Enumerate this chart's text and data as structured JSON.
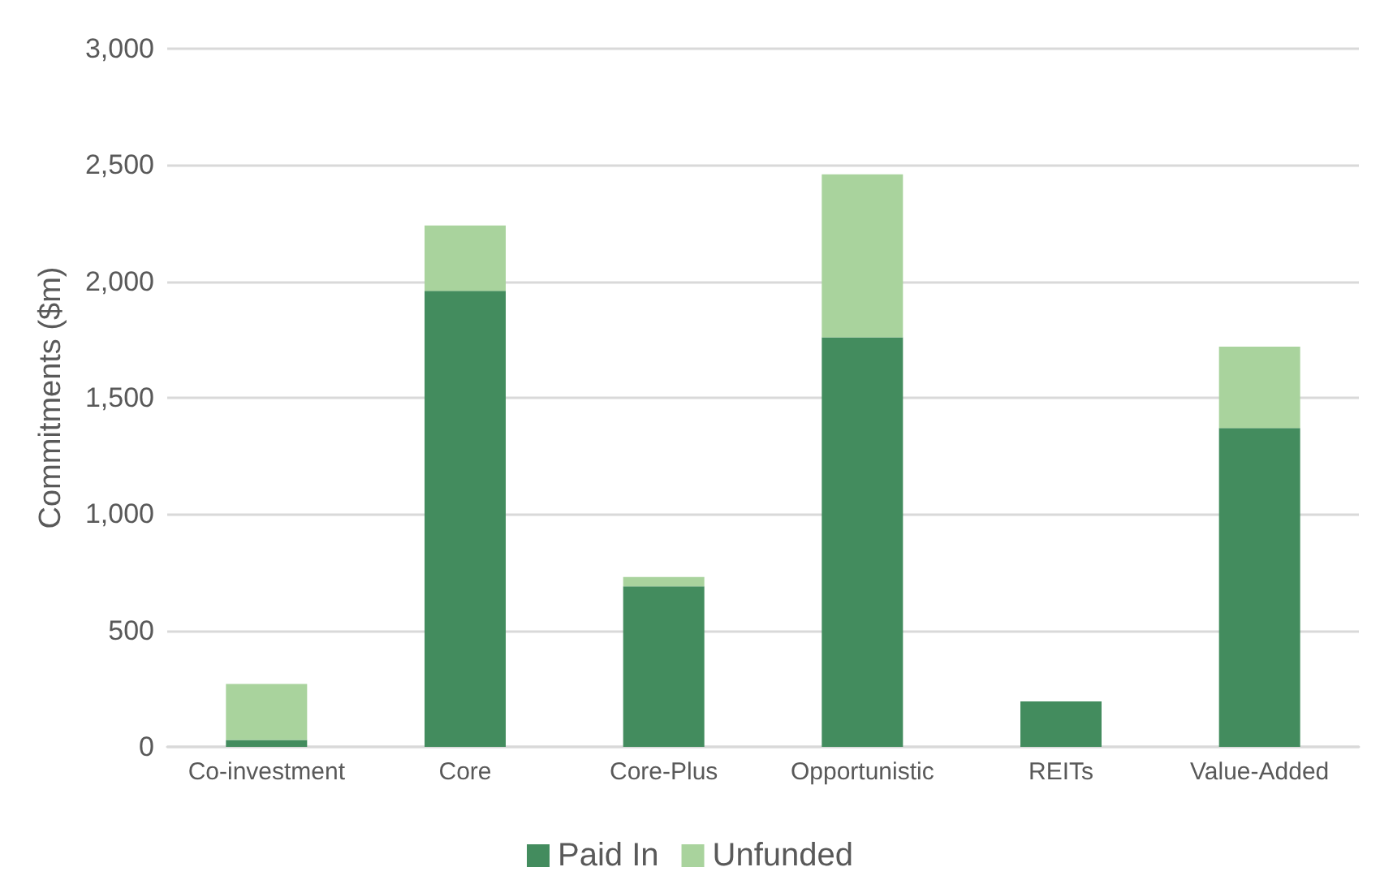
{
  "chart_data": {
    "type": "bar",
    "stacked": true,
    "ylabel": "Commitments ($m)",
    "categories": [
      "Co-investment",
      "Core",
      "Core-Plus",
      "Opportunistic",
      "REITs",
      "Value-Added"
    ],
    "series": [
      {
        "name": "Paid In",
        "color": "#438c5e",
        "values": [
          30,
          1960,
          690,
          1760,
          195,
          1370
        ]
      },
      {
        "name": "Unfunded",
        "color": "#a9d39d",
        "values": [
          240,
          280,
          40,
          700,
          0,
          350
        ]
      }
    ],
    "ylim": [
      0,
      3000
    ],
    "yticks": [
      {
        "value": 0,
        "label": "0"
      },
      {
        "value": 500,
        "label": "500"
      },
      {
        "value": 1000,
        "label": "1,000"
      },
      {
        "value": 1500,
        "label": "1,500"
      },
      {
        "value": 2000,
        "label": "2,000"
      },
      {
        "value": 2500,
        "label": "2,500"
      },
      {
        "value": 3000,
        "label": "3,000"
      }
    ],
    "grid": "y",
    "legend": "bottom"
  }
}
